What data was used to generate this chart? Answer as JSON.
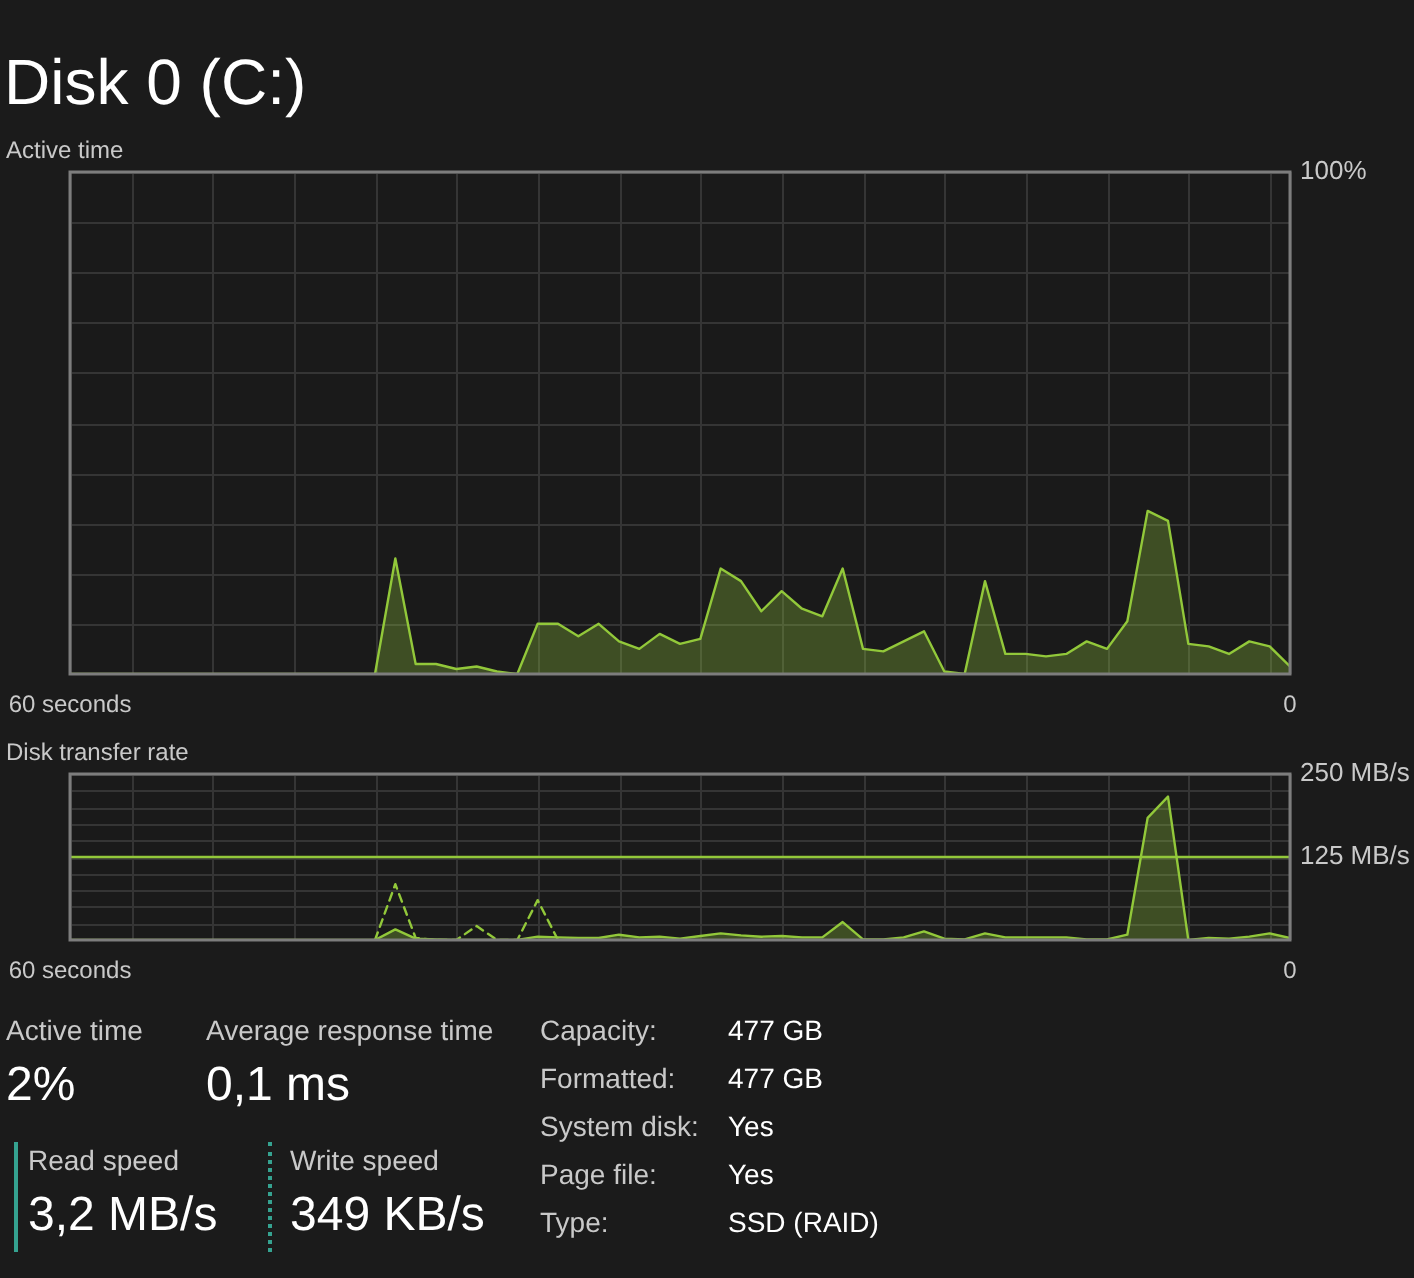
{
  "chart_data": [
    {
      "type": "area",
      "title": "Disk 0 (C:)",
      "ylabel": "Active time",
      "x": [
        60,
        59,
        58,
        57,
        56,
        55,
        54,
        53,
        52,
        51,
        50,
        49,
        48,
        47,
        46,
        45,
        44,
        43,
        42,
        41,
        40,
        39,
        38,
        37,
        36,
        35,
        34,
        33,
        32,
        31,
        30,
        29,
        28,
        27,
        26,
        25,
        24,
        23,
        22,
        21,
        20,
        19,
        18,
        17,
        16,
        15,
        14,
        13,
        12,
        11,
        10,
        9,
        8,
        7,
        6,
        5,
        4,
        3,
        2,
        1,
        0
      ],
      "series": [
        {
          "color": "#92c83a",
          "values": [
            0,
            0,
            0,
            0,
            0,
            0,
            0,
            0,
            0,
            0,
            0,
            0,
            0,
            0,
            0,
            0,
            23,
            2,
            2,
            1,
            1.5,
            0.5,
            0,
            10,
            10,
            7.5,
            10,
            6.5,
            5,
            8,
            6,
            7,
            21,
            18.5,
            12.5,
            16.5,
            13,
            11.5,
            21,
            5,
            4.5,
            6.5,
            8.5,
            0.5,
            0,
            18.5,
            4,
            4,
            3.5,
            4,
            6.5,
            5,
            10.5,
            32.5,
            30.5,
            6,
            5.5,
            4,
            6.5,
            5.5,
            1.5
          ]
        }
      ],
      "xlim": [
        60,
        0
      ],
      "xticks": [
        {
          "value": 60,
          "label": "60 seconds"
        },
        {
          "value": 57,
          "label": null
        },
        {
          "value": 53,
          "label": null
        },
        {
          "value": 49,
          "label": null
        },
        {
          "value": 45,
          "label": null
        },
        {
          "value": 41,
          "label": null
        },
        {
          "value": 37,
          "label": null
        },
        {
          "value": 33,
          "label": null
        },
        {
          "value": 29,
          "label": null
        },
        {
          "value": 25,
          "label": null
        },
        {
          "value": 21,
          "label": null
        },
        {
          "value": 17,
          "label": null
        },
        {
          "value": 13,
          "label": null
        },
        {
          "value": 9,
          "label": null
        },
        {
          "value": 5,
          "label": null
        },
        {
          "value": 1,
          "label": null
        },
        {
          "value": 0,
          "label": "0"
        }
      ],
      "ylim": [
        0,
        100
      ],
      "yticks": [
        {
          "value": 10,
          "label": null
        },
        {
          "value": 20,
          "label": null
        },
        {
          "value": 30,
          "label": null
        },
        {
          "value": 40,
          "label": null
        },
        {
          "value": 50,
          "label": null
        },
        {
          "value": 60,
          "label": null
        },
        {
          "value": 70,
          "label": null
        },
        {
          "value": 80,
          "label": null
        },
        {
          "value": 90,
          "label": null
        },
        {
          "value": 100,
          "label": "100%"
        }
      ],
      "grid": true
    },
    {
      "type": "area",
      "ylabel": "Disk transfer rate",
      "x": [
        60,
        59,
        58,
        57,
        56,
        55,
        54,
        53,
        52,
        51,
        50,
        49,
        48,
        47,
        46,
        45,
        44,
        43,
        42,
        41,
        40,
        39,
        38,
        37,
        36,
        35,
        34,
        33,
        32,
        31,
        30,
        29,
        28,
        27,
        26,
        25,
        24,
        23,
        22,
        21,
        20,
        19,
        18,
        17,
        16,
        15,
        14,
        13,
        12,
        11,
        10,
        9,
        8,
        7,
        6,
        5,
        4,
        3,
        2,
        1,
        0
      ],
      "series": [
        {
          "color": "#92c83a",
          "values": [
            0,
            0,
            0,
            0,
            0,
            0,
            0,
            0,
            0,
            0,
            0,
            0,
            0,
            0,
            0,
            0,
            16,
            2,
            1,
            0,
            0,
            0,
            0,
            5,
            4,
            3,
            3,
            8,
            4,
            5,
            2,
            6,
            10,
            7,
            5,
            6,
            4,
            4,
            27,
            1,
            1,
            4,
            13,
            2,
            1,
            10,
            4,
            4,
            4,
            4,
            1,
            1,
            8,
            184,
            216,
            0,
            3,
            2,
            5,
            10,
            3
          ]
        },
        {
          "type": "line",
          "line_style": "dashed",
          "color": "#92c83a",
          "values": [
            null,
            null,
            null,
            null,
            null,
            null,
            null,
            null,
            null,
            null,
            null,
            null,
            null,
            null,
            null,
            0,
            84,
            3,
            0,
            0,
            21,
            0,
            0,
            60,
            0,
            null,
            null,
            null,
            null,
            null,
            null,
            null,
            null,
            null,
            null,
            null,
            null,
            null,
            null,
            null,
            null,
            null,
            null,
            null,
            null,
            null,
            null,
            null,
            null,
            null,
            null,
            null,
            null,
            null,
            null,
            null,
            null,
            null,
            null,
            null,
            null
          ]
        }
      ],
      "xlim": [
        60,
        0
      ],
      "xticks": [
        {
          "value": 60,
          "label": "60 seconds"
        },
        {
          "value": 57,
          "label": null
        },
        {
          "value": 53,
          "label": null
        },
        {
          "value": 49,
          "label": null
        },
        {
          "value": 45,
          "label": null
        },
        {
          "value": 41,
          "label": null
        },
        {
          "value": 37,
          "label": null
        },
        {
          "value": 33,
          "label": null
        },
        {
          "value": 29,
          "label": null
        },
        {
          "value": 25,
          "label": null
        },
        {
          "value": 21,
          "label": null
        },
        {
          "value": 17,
          "label": null
        },
        {
          "value": 13,
          "label": null
        },
        {
          "value": 9,
          "label": null
        },
        {
          "value": 5,
          "label": null
        },
        {
          "value": 1,
          "label": null
        },
        {
          "value": 0,
          "label": "0"
        }
      ],
      "ylim": [
        0,
        250
      ],
      "yticks": [
        {
          "value": 25,
          "label": null
        },
        {
          "value": 50,
          "label": null
        },
        {
          "value": 75,
          "label": null
        },
        {
          "value": 100,
          "label": null
        },
        {
          "value": 125,
          "label": "125 MB/s"
        },
        {
          "value": 150,
          "label": null
        },
        {
          "value": 175,
          "label": null
        },
        {
          "value": 200,
          "label": null
        },
        {
          "value": 225,
          "label": null
        },
        {
          "value": 250,
          "label": "250 MB/s"
        }
      ],
      "ref_lines": [
        {
          "axis": "y",
          "value": 125,
          "color": "#92c83a"
        }
      ],
      "grid": true
    },
    {
      "type": "other",
      "annotations": [
        "Active time",
        "2%",
        "Average response time",
        "0,1 ms",
        "Read speed",
        "3,2 MB/s",
        "Write speed",
        "349 KB/s",
        "Capacity:",
        "477 GB",
        "Formatted:",
        "477 GB",
        "System disk:",
        "Yes",
        "Page file:",
        "Yes",
        "Type:",
        "SSD (RAID)"
      ]
    }
  ]
}
